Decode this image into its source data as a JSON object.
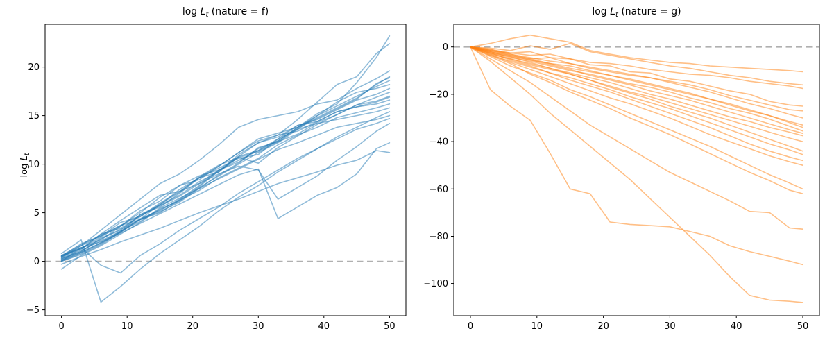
{
  "figure": {
    "background": "#ffffff"
  },
  "chart_data": [
    {
      "type": "line",
      "panel": "left",
      "title": "log L_t (nature = f)",
      "title_parts": {
        "prefix": "log ",
        "var": "L",
        "sub": "t",
        "rest": " (nature = f)"
      },
      "ylabel": "log L_t",
      "ylabel_parts": {
        "prefix": "log ",
        "var": "L",
        "sub": "t"
      },
      "line_color": "#1f77b4",
      "line_alpha": 0.5,
      "line_width": 1.6,
      "grid": false,
      "legend": "none",
      "xlim": [
        -2.5,
        52.5
      ],
      "ylim": [
        -5.6,
        24.4
      ],
      "xticks": [
        {
          "v": 0,
          "label": "0"
        },
        {
          "v": 10,
          "label": "10"
        },
        {
          "v": 20,
          "label": "20"
        },
        {
          "v": 30,
          "label": "30"
        },
        {
          "v": 40,
          "label": "40"
        },
        {
          "v": 50,
          "label": "50"
        }
      ],
      "yticks": [
        {
          "v": -5,
          "label": "−5"
        },
        {
          "v": 0,
          "label": "0"
        },
        {
          "v": 5,
          "label": "5"
        },
        {
          "v": 10,
          "label": "10"
        },
        {
          "v": 15,
          "label": "15"
        },
        {
          "v": 20,
          "label": "20"
        }
      ],
      "zero_line": {
        "y": 0,
        "color": "#b0b0b0",
        "width": 1.8,
        "dash": "9 5.5"
      },
      "x": [
        0,
        3,
        6,
        9,
        12,
        15,
        18,
        21,
        24,
        27,
        30,
        33,
        36,
        39,
        42,
        45,
        48,
        50
      ],
      "series": [
        [
          0.5,
          1.8,
          2.6,
          4.0,
          4.6,
          6.0,
          7.2,
          8.0,
          9.4,
          10.2,
          11.6,
          12.4,
          13.8,
          15.2,
          16.2,
          18.4,
          21.0,
          23.2
        ],
        [
          0.2,
          1.0,
          2.4,
          3.2,
          4.8,
          5.6,
          7.0,
          8.6,
          9.2,
          11.0,
          12.2,
          13.0,
          14.6,
          16.4,
          18.2,
          19.0,
          21.4,
          22.4
        ],
        [
          0.4,
          1.6,
          3.2,
          4.8,
          6.4,
          8.0,
          9.0,
          10.4,
          12.0,
          13.8,
          14.6,
          15.0,
          15.4,
          16.2,
          16.6,
          17.8,
          18.8,
          19.6
        ],
        [
          0.0,
          0.8,
          1.8,
          3.0,
          4.4,
          5.2,
          6.4,
          7.8,
          9.4,
          10.8,
          11.4,
          12.4,
          13.8,
          14.8,
          15.8,
          16.8,
          18.2,
          19.0
        ],
        [
          -0.8,
          0.6,
          1.6,
          2.8,
          4.0,
          5.4,
          6.2,
          7.6,
          8.8,
          10.0,
          11.2,
          12.2,
          13.6,
          15.0,
          16.0,
          17.0,
          18.0,
          18.6
        ],
        [
          0.6,
          1.4,
          2.2,
          3.6,
          5.0,
          6.6,
          7.8,
          8.4,
          9.8,
          11.2,
          12.6,
          13.2,
          13.8,
          15.0,
          16.4,
          17.4,
          17.8,
          18.2
        ],
        [
          0.3,
          1.2,
          2.8,
          3.4,
          4.6,
          5.8,
          7.4,
          8.6,
          9.6,
          10.6,
          11.0,
          12.6,
          14.0,
          14.6,
          15.6,
          16.6,
          17.2,
          17.8
        ],
        [
          0.1,
          0.9,
          1.9,
          3.1,
          4.3,
          5.1,
          6.1,
          7.5,
          8.9,
          10.1,
          11.7,
          12.3,
          13.1,
          14.3,
          15.1,
          16.1,
          16.9,
          17.4
        ],
        [
          0.6,
          1.3,
          2.5,
          3.7,
          4.3,
          5.9,
          7.1,
          8.7,
          9.9,
          10.7,
          10.1,
          11.7,
          12.9,
          14.1,
          15.1,
          16.1,
          16.5,
          17.0
        ],
        [
          0.0,
          1.4,
          2.0,
          3.0,
          4.8,
          5.8,
          6.8,
          8.2,
          9.2,
          10.8,
          12.2,
          12.8,
          14.0,
          14.4,
          15.4,
          15.9,
          16.2,
          16.6
        ],
        [
          0.3,
          1.0,
          2.3,
          3.3,
          4.3,
          5.3,
          6.3,
          7.3,
          8.6,
          9.6,
          10.6,
          12.0,
          13.0,
          13.8,
          14.8,
          15.3,
          15.8,
          16.2
        ],
        [
          0.5,
          1.6,
          2.6,
          3.6,
          5.2,
          6.2,
          7.8,
          8.8,
          9.4,
          10.4,
          11.4,
          12.6,
          13.6,
          14.2,
          14.6,
          15.0,
          15.4,
          15.8
        ],
        [
          0.8,
          2.2,
          -4.2,
          -2.6,
          -0.8,
          0.8,
          2.2,
          3.6,
          5.2,
          6.6,
          7.8,
          9.2,
          10.4,
          11.6,
          12.8,
          13.8,
          14.8,
          15.4
        ],
        [
          0.2,
          1.1,
          2.1,
          3.1,
          4.1,
          5.5,
          6.5,
          7.5,
          8.5,
          9.5,
          10.5,
          11.5,
          12.2,
          13.0,
          13.8,
          14.2,
          14.6,
          15.0
        ],
        [
          0.4,
          1.4,
          -0.4,
          -1.2,
          0.6,
          1.8,
          3.2,
          4.4,
          5.6,
          7.0,
          8.2,
          9.4,
          10.6,
          11.6,
          12.6,
          13.6,
          14.2,
          14.7
        ],
        [
          0.6,
          1.7,
          2.7,
          3.7,
          4.7,
          5.7,
          6.7,
          8.0,
          9.0,
          9.8,
          9.4,
          6.4,
          7.6,
          8.8,
          10.4,
          11.8,
          13.4,
          14.2
        ],
        [
          0.1,
          0.9,
          1.9,
          2.9,
          3.9,
          4.9,
          5.9,
          6.9,
          7.9,
          8.9,
          9.5,
          4.4,
          5.6,
          6.8,
          7.6,
          9.0,
          11.6,
          12.2
        ],
        [
          -0.3,
          0.5,
          1.2,
          2.0,
          2.7,
          3.4,
          4.2,
          5.0,
          5.7,
          6.4,
          7.2,
          8.0,
          8.6,
          9.2,
          9.9,
          10.4,
          11.4,
          11.2
        ],
        [
          0.0,
          0.7,
          1.7,
          3.0,
          4.3,
          5.0,
          6.3,
          7.7,
          9.3,
          10.7,
          11.3,
          12.3,
          13.7,
          14.7,
          15.7,
          16.7,
          18.3,
          18.9
        ],
        [
          0.5,
          1.3,
          2.8,
          4.2,
          5.5,
          6.8,
          7.2,
          8.6,
          9.8,
          11.2,
          12.4,
          13.0,
          13.4,
          14.4,
          15.4,
          15.9,
          16.4,
          16.9
        ]
      ]
    },
    {
      "type": "line",
      "panel": "right",
      "title": "log L_t (nature = g)",
      "title_parts": {
        "prefix": "log ",
        "var": "L",
        "sub": "t",
        "rest": " (nature = g)"
      },
      "ylabel": "",
      "ylabel_parts": null,
      "line_color": "#ff7f0e",
      "line_alpha": 0.5,
      "line_width": 1.6,
      "grid": false,
      "legend": "none",
      "xlim": [
        -2.5,
        52.5
      ],
      "ylim": [
        -113.6,
        9.6
      ],
      "xticks": [
        {
          "v": 0,
          "label": "0"
        },
        {
          "v": 10,
          "label": "10"
        },
        {
          "v": 20,
          "label": "20"
        },
        {
          "v": 30,
          "label": "30"
        },
        {
          "v": 40,
          "label": "40"
        },
        {
          "v": 50,
          "label": "50"
        }
      ],
      "yticks": [
        {
          "v": 0,
          "label": "0"
        },
        {
          "v": -20,
          "label": "−20"
        },
        {
          "v": -40,
          "label": "−40"
        },
        {
          "v": -60,
          "label": "−60"
        },
        {
          "v": -80,
          "label": "−80"
        },
        {
          "v": -100,
          "label": "−100"
        }
      ],
      "zero_line": {
        "y": 0,
        "color": "#b0b0b0",
        "width": 1.8,
        "dash": "9 5.5"
      },
      "x": [
        0,
        3,
        6,
        9,
        12,
        15,
        18,
        21,
        24,
        27,
        30,
        33,
        36,
        39,
        42,
        45,
        48,
        50
      ],
      "series": [
        [
          0,
          1.5,
          3.5,
          5.0,
          3.5,
          2.0,
          -1.5,
          -3.0,
          -4.5,
          -5.5,
          -6.5,
          -7.0,
          -8.0,
          -8.5,
          -9.0,
          -9.5,
          -10.0,
          -10.5
        ],
        [
          0,
          -0.5,
          -1.5,
          0.5,
          -1.0,
          1.5,
          -2.0,
          -3.5,
          -5.0,
          -6.5,
          -8.0,
          -9.0,
          -10.5,
          -12.0,
          -13.0,
          -14.5,
          -15.5,
          -16.0
        ],
        [
          0,
          -1.5,
          -2.5,
          -3.5,
          -3.0,
          -5.0,
          -6.5,
          -7.0,
          -8.0,
          -9.5,
          -10.5,
          -11.5,
          -12.0,
          -13.0,
          -14.5,
          -15.5,
          -16.5,
          -17.5
        ],
        [
          0,
          -1.0,
          -2.5,
          -2.0,
          -4.5,
          -5.0,
          -7.5,
          -8.0,
          -10.5,
          -11.0,
          -13.5,
          -14.5,
          -16.5,
          -18.5,
          -20.0,
          -23.0,
          -24.5,
          -25.0
        ],
        [
          0,
          -2.0,
          -3.5,
          -5.0,
          -4.5,
          -7.0,
          -9.0,
          -10.5,
          -12.0,
          -13.0,
          -14.5,
          -16.0,
          -18.0,
          -20.5,
          -22.5,
          -24.5,
          -26.5,
          -27.0
        ],
        [
          0,
          -1.5,
          -3.0,
          -4.5,
          -6.0,
          -7.0,
          -8.5,
          -10.0,
          -11.5,
          -13.0,
          -15.0,
          -17.0,
          -19.0,
          -21.5,
          -24.0,
          -26.0,
          -28.5,
          -30.0
        ],
        [
          0,
          -2.5,
          -4.0,
          -5.5,
          -7.0,
          -9.0,
          -10.5,
          -12.0,
          -14.0,
          -16.0,
          -18.0,
          -20.0,
          -22.0,
          -24.5,
          -27.0,
          -29.0,
          -31.5,
          -33.0
        ],
        [
          0,
          -1.0,
          -3.0,
          -5.0,
          -7.0,
          -8.0,
          -10.0,
          -12.0,
          -13.5,
          -15.5,
          -17.5,
          -19.5,
          -22.0,
          -24.0,
          -26.5,
          -29.0,
          -32.0,
          -34.0
        ],
        [
          0,
          -2.0,
          -4.5,
          -6.0,
          -8.0,
          -10.0,
          -11.5,
          -13.5,
          -15.5,
          -17.0,
          -19.0,
          -21.5,
          -23.5,
          -26.0,
          -28.0,
          -30.5,
          -33.5,
          -35.5
        ],
        [
          0,
          -1.5,
          -3.5,
          -5.5,
          -7.5,
          -9.5,
          -12.0,
          -14.0,
          -16.0,
          -18.5,
          -20.5,
          -22.5,
          -25.0,
          -27.5,
          -30.0,
          -32.5,
          -35.0,
          -36.5
        ],
        [
          0,
          -3.0,
          -5.0,
          -7.0,
          -9.0,
          -11.0,
          -13.0,
          -15.0,
          -17.5,
          -20.0,
          -22.0,
          -24.5,
          -27.0,
          -29.5,
          -31.5,
          -34.0,
          -36.0,
          -37.5
        ],
        [
          0,
          -2.5,
          -5.0,
          -7.5,
          -9.5,
          -11.5,
          -14.0,
          -16.5,
          -19.0,
          -21.0,
          -23.5,
          -26.0,
          -28.5,
          -31.0,
          -33.5,
          -36.0,
          -38.5,
          -40.0
        ],
        [
          0,
          -2.0,
          -4.0,
          -6.5,
          -9.0,
          -11.5,
          -14.0,
          -17.0,
          -19.5,
          -22.0,
          -25.0,
          -27.5,
          -30.0,
          -33.0,
          -36.0,
          -39.0,
          -42.0,
          -44.0
        ],
        [
          0,
          -3.5,
          -6.0,
          -8.5,
          -11.0,
          -13.0,
          -15.5,
          -18.0,
          -21.0,
          -23.5,
          -26.0,
          -29.0,
          -32.0,
          -35.0,
          -38.0,
          -41.0,
          -43.5,
          -45.5
        ],
        [
          0,
          -2.5,
          -5.5,
          -8.0,
          -11.0,
          -14.0,
          -16.5,
          -19.0,
          -22.0,
          -25.0,
          -28.0,
          -31.0,
          -34.0,
          -37.5,
          -41.0,
          -44.0,
          -46.5,
          -48.0
        ],
        [
          0,
          -3.0,
          -6.5,
          -9.5,
          -12.5,
          -15.5,
          -18.5,
          -21.5,
          -24.0,
          -27.0,
          -30.0,
          -33.5,
          -37.0,
          -40.0,
          -43.0,
          -46.0,
          -48.5,
          -50.0
        ],
        [
          0,
          -4.0,
          -8.0,
          -11.0,
          -14.0,
          -18.0,
          -21.0,
          -24.5,
          -28.0,
          -31.5,
          -35.0,
          -38.5,
          -42.0,
          -46.0,
          -50.0,
          -54.0,
          -57.5,
          -60.0
        ],
        [
          0,
          -3.5,
          -7.0,
          -11.5,
          -15.0,
          -19.0,
          -22.5,
          -26.0,
          -30.0,
          -33.5,
          -37.0,
          -41.0,
          -45.0,
          -49.0,
          -53.0,
          -56.5,
          -60.5,
          -62.0
        ],
        [
          0,
          -5.0,
          -10.0,
          -15.0,
          -21.0,
          -27.0,
          -33.0,
          -38.0,
          -43.0,
          -48.0,
          -53.0,
          -57.0,
          -61.0,
          -65.0,
          -69.5,
          -70.0,
          -76.5,
          -77.0
        ],
        [
          0,
          -18.0,
          -25.0,
          -31.0,
          -45.0,
          -60.0,
          -62.0,
          -74.0,
          -75.0,
          -75.5,
          -76.0,
          -78.0,
          -80.0,
          -84.0,
          -86.5,
          -88.5,
          -90.5,
          -92.0
        ],
        [
          0,
          -6.0,
          -13.0,
          -20.0,
          -28.0,
          -35.0,
          -42.0,
          -49.0,
          -56.0,
          -64.0,
          -72.0,
          -80.0,
          -88.0,
          -97.0,
          -105.0,
          -107.0,
          -107.5,
          -108.0
        ]
      ]
    }
  ]
}
